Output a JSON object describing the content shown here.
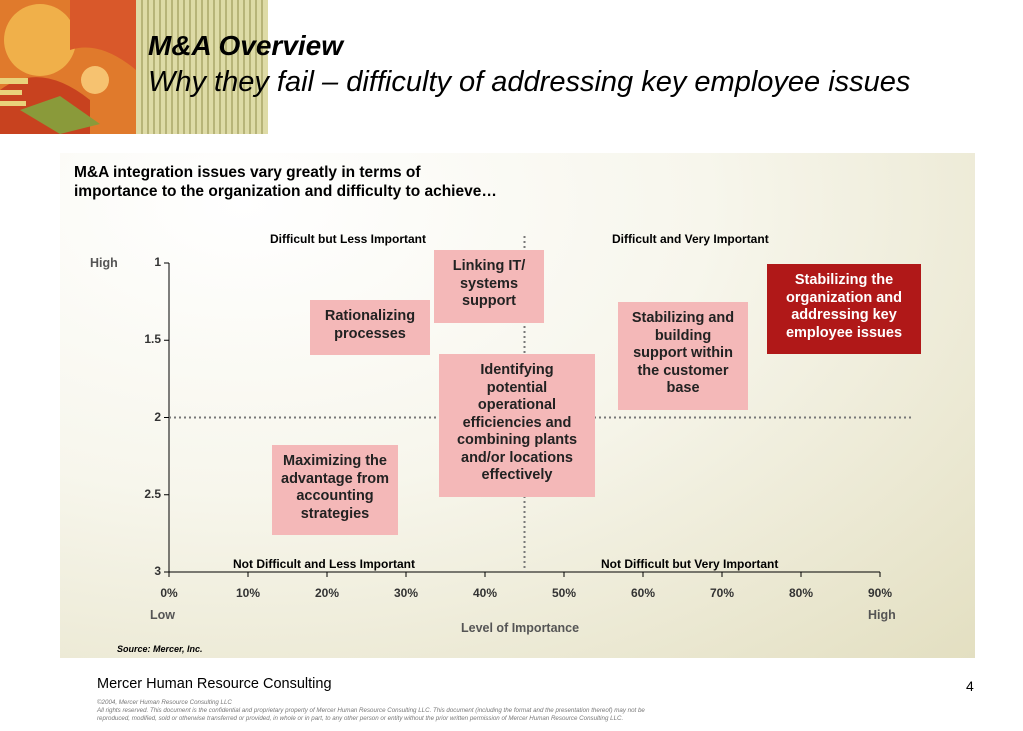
{
  "slide": {
    "title": "M&A Overview",
    "subtitle": "Why they fail – difficulty of addressing key employee issues",
    "intro_line1": "M&A integration issues vary greatly in terms of",
    "intro_line2": "importance to the organization and difficulty to achieve…",
    "source": "Source:  Mercer, Inc.",
    "company": "Mercer Human Resource Consulting",
    "page_number": "4",
    "legal_line1": "©2004, Mercer Human Resource Consulting LLC",
    "legal_line2": "All rights reserved. This document is the confidential and proprietary property of Mercer Human Resource Consulting LLC.  This document (including the format and the presentation thereof) may not be",
    "legal_line3": "reproduced, modified, sold or otherwise transferred or provided, in whole or in part, to any other person or entity without the prior written permission of Mercer Human Resource Consulting LLC."
  },
  "chart_data": {
    "type": "scatter",
    "xlabel": "Level of Importance",
    "x_low_label": "Low",
    "x_high_label": "High",
    "y_high_label": "High",
    "xlim": [
      0,
      0.9
    ],
    "ylim": [
      1,
      3
    ],
    "y_reversed": true,
    "x_ticks": [
      "0%",
      "10%",
      "20%",
      "30%",
      "40%",
      "50%",
      "60%",
      "70%",
      "80%",
      "90%"
    ],
    "y_ticks": [
      "1",
      "1.5",
      "2",
      "2.5",
      "3"
    ],
    "x_divider": 0.45,
    "y_divider": 2,
    "quadrants": {
      "top_left": "Difficult but Less Important",
      "top_right": "Difficult and Very Important",
      "bottom_left": "Not Difficult and Less Important",
      "bottom_right": "Not Difficult but Very Important"
    },
    "items": [
      {
        "lines": [
          "Linking IT/",
          "systems",
          "support"
        ],
        "x": 0.405,
        "y": 1.15,
        "highlight": false
      },
      {
        "lines": [
          "Rationalizing",
          "processes"
        ],
        "x": 0.255,
        "y": 1.42,
        "highlight": false
      },
      {
        "lines": [
          "Stabilizing and",
          "building",
          "support within",
          "the customer",
          "base"
        ],
        "x": 0.65,
        "y": 1.6,
        "highlight": false
      },
      {
        "lines": [
          "Stabilizing the",
          "organization and",
          "addressing key",
          "employee issues"
        ],
        "x": 0.855,
        "y": 1.3,
        "highlight": true
      },
      {
        "lines": [
          "Identifying",
          "potential",
          "operational",
          "efficiencies and",
          "combining plants",
          "and/or locations",
          "effectively"
        ],
        "x": 0.44,
        "y": 2.05,
        "highlight": false
      },
      {
        "lines": [
          "Maximizing the",
          "advantage from",
          "accounting",
          "strategies"
        ],
        "x": 0.21,
        "y": 2.47,
        "highlight": false
      }
    ],
    "colors": {
      "box": "#f4b8b8",
      "highlight": "#b01818",
      "divider": "#777777"
    }
  }
}
